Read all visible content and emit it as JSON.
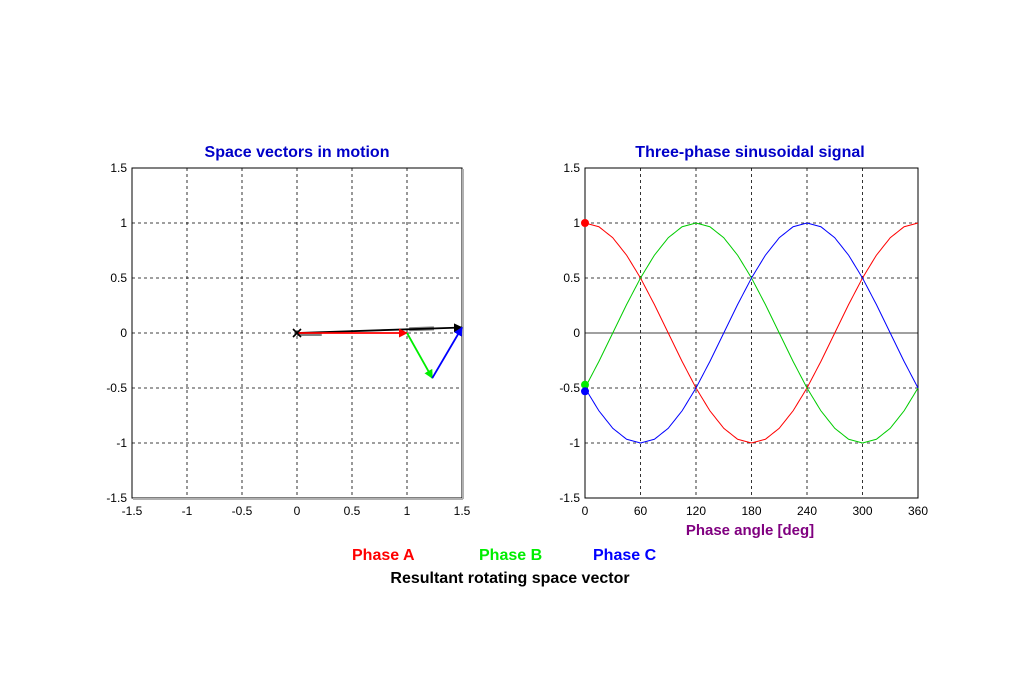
{
  "chart_data": [
    {
      "type": "line",
      "title": "Space vectors in motion",
      "xlabel": "",
      "ylabel": "",
      "xlim": [
        -1.5,
        1.5
      ],
      "ylim": [
        -1.5,
        1.5
      ],
      "xticks": [
        -1.5,
        -1,
        -0.5,
        0,
        0.5,
        1,
        1.5
      ],
      "yticks": [
        -1.5,
        -1,
        -0.5,
        0,
        0.5,
        1,
        1.5
      ],
      "xtick_labels": [
        "-1.5",
        "-1",
        "-0.5",
        "0",
        "0.5",
        "1",
        "1.5"
      ],
      "ytick_labels": [
        "-1.5",
        "-1",
        "-0.5",
        "0",
        "0.5",
        "1",
        "1.5"
      ],
      "grid": true,
      "origin_marker": {
        "x": 0,
        "y": 0,
        "symbol": "x"
      },
      "vectors": [
        {
          "name": "Phase A",
          "color": "#ff0000",
          "from": [
            0,
            0
          ],
          "to": [
            1.0,
            0
          ]
        },
        {
          "name": "Phase B",
          "color": "#00ee00",
          "from": [
            1.0,
            0
          ],
          "to": [
            1.23,
            -0.41
          ]
        },
        {
          "name": "Phase C",
          "color": "#0000ff",
          "from": [
            1.23,
            -0.41
          ],
          "to": [
            1.5,
            0.05
          ]
        },
        {
          "name": "Resultant rotating space vector",
          "color": "#000000",
          "from": [
            0,
            0
          ],
          "to": [
            1.5,
            0.05
          ]
        }
      ]
    },
    {
      "type": "line",
      "title": "Three-phase sinusoidal signal",
      "xlabel": "Phase angle [deg]",
      "ylabel": "",
      "xlim": [
        0,
        360
      ],
      "ylim": [
        -1.5,
        1.5
      ],
      "xticks": [
        0,
        60,
        120,
        180,
        240,
        300,
        360
      ],
      "yticks": [
        -1.5,
        -1,
        -0.5,
        0,
        0.5,
        1,
        1.5
      ],
      "xtick_labels": [
        "0",
        "60",
        "120",
        "180",
        "240",
        "300",
        "360"
      ],
      "ytick_labels": [
        "-1.5",
        "-1",
        "-0.5",
        "0",
        "0.5",
        "1",
        "1.5"
      ],
      "grid": true,
      "zero_line": true,
      "x": [
        0,
        15,
        30,
        45,
        60,
        75,
        90,
        105,
        120,
        135,
        150,
        165,
        180,
        195,
        210,
        225,
        240,
        255,
        270,
        285,
        300,
        315,
        330,
        345,
        360
      ],
      "series": [
        {
          "name": "Phase A",
          "color": "#ff0000",
          "values": [
            1,
            0.966,
            0.866,
            0.707,
            0.5,
            0.259,
            0,
            -0.259,
            -0.5,
            -0.707,
            -0.866,
            -0.966,
            -1,
            -0.966,
            -0.866,
            -0.707,
            -0.5,
            -0.259,
            0,
            0.259,
            0.5,
            0.707,
            0.866,
            0.966,
            1
          ]
        },
        {
          "name": "Phase B",
          "color": "#00cc00",
          "values": [
            -0.5,
            -0.259,
            0,
            0.259,
            0.5,
            0.707,
            0.866,
            0.966,
            1,
            0.966,
            0.866,
            0.707,
            0.5,
            0.259,
            0,
            -0.259,
            -0.5,
            -0.707,
            -0.866,
            -0.966,
            -1,
            -0.966,
            -0.866,
            -0.707,
            -0.5
          ]
        },
        {
          "name": "Phase C",
          "color": "#0000ff",
          "values": [
            -0.5,
            -0.707,
            -0.866,
            -0.966,
            -1,
            -0.966,
            -0.866,
            -0.707,
            -0.5,
            -0.259,
            0,
            0.259,
            0.5,
            0.707,
            0.866,
            0.966,
            1,
            0.966,
            0.866,
            0.707,
            0.5,
            0.259,
            0,
            -0.259,
            -0.5
          ]
        }
      ],
      "markers": [
        {
          "name": "Phase A",
          "color": "#ff0000",
          "x": 0,
          "y": 1
        },
        {
          "name": "Phase B",
          "color": "#00ee00",
          "x": 0,
          "y": -0.47
        },
        {
          "name": "Phase C",
          "color": "#0000ff",
          "x": 0,
          "y": -0.53
        }
      ]
    }
  ],
  "legend": {
    "phase_a": {
      "label": "Phase A",
      "color": "#ff0000"
    },
    "phase_b": {
      "label": "Phase B",
      "color": "#00ee00"
    },
    "phase_c": {
      "label": "Phase C",
      "color": "#0000ff"
    },
    "resultant": {
      "label": "Resultant rotating space vector",
      "color": "#000000"
    }
  },
  "colors": {
    "title": "#0000c8",
    "xlabel": "#800080"
  }
}
